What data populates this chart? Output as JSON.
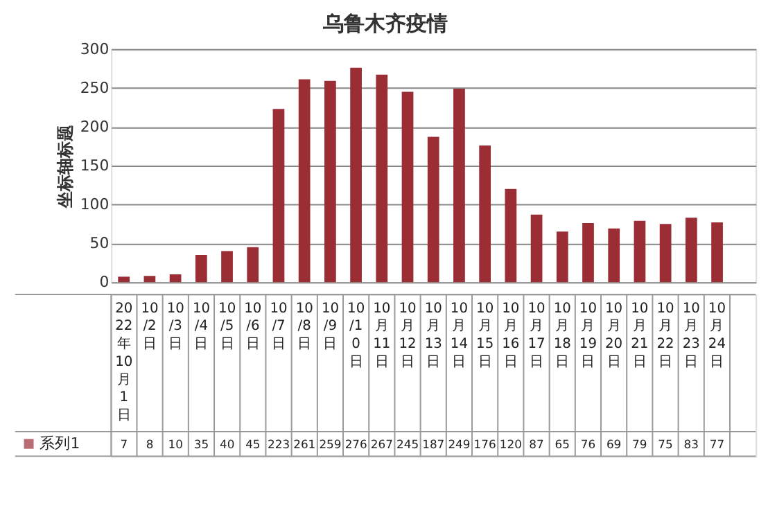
{
  "chart_data": {
    "type": "bar",
    "title": "乌鲁木齐疫情",
    "ylabel": "坐标轴标题",
    "categories": [
      "2022年10月1日",
      "10/2日",
      "10/3日",
      "10/4日",
      "10/5日",
      "10/6日",
      "10/7日",
      "10/8日",
      "10/9日",
      "10/10日",
      "10月11日",
      "10月12日",
      "10月13日",
      "10月14日",
      "10月15日",
      "10月16日",
      "10月17日",
      "10月18日",
      "10月19日",
      "10月20日",
      "10月21日",
      "10月22日",
      "10月23日",
      "10月24日",
      null
    ],
    "series": [
      {
        "name": "系列1",
        "color": "#9b2d35",
        "values": [
          7,
          8,
          10,
          35,
          40,
          45,
          223,
          261,
          259,
          276,
          267,
          245,
          187,
          249,
          176,
          120,
          87,
          65,
          76,
          69,
          79,
          75,
          83,
          77,
          null
        ]
      }
    ],
    "data_labels": true,
    "ylim": [
      0,
      300
    ],
    "yticks": [
      0,
      50,
      100,
      150,
      200,
      250,
      300
    ],
    "grid": "y",
    "legend": "bottom"
  }
}
